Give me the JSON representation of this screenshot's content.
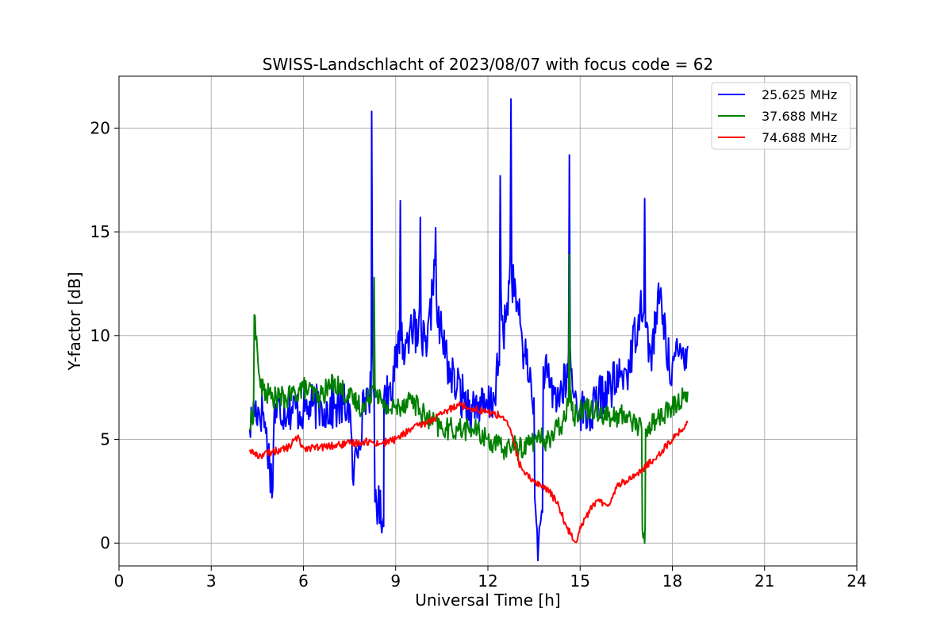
{
  "chart_data": {
    "type": "line",
    "title": "SWISS-Landschlacht of 2023/08/07 with focus code = 62",
    "xlabel": "Universal Time [h]",
    "ylabel": "Y-factor [dB]",
    "xlim": [
      0,
      24
    ],
    "ylim": [
      -1.1,
      22.5
    ],
    "xticks": [
      0,
      3,
      6,
      9,
      12,
      15,
      18,
      21,
      24
    ],
    "yticks": [
      0,
      5,
      10,
      15,
      20
    ],
    "grid": true,
    "legend_position": "top-right",
    "series": [
      {
        "name": "25.625 MHz",
        "color": "#0000ff",
        "x": [
          4.25,
          4.4,
          4.7,
          5.0,
          5.05,
          5.5,
          6.0,
          6.3,
          6.6,
          7.0,
          7.5,
          7.6,
          8.0,
          8.2,
          8.22,
          8.3,
          8.6,
          8.62,
          8.8,
          9.0,
          9.15,
          9.3,
          9.5,
          9.7,
          9.8,
          10.0,
          10.2,
          10.3,
          10.5,
          10.8,
          11.0,
          11.2,
          11.5,
          11.7,
          11.9,
          12.2,
          12.4,
          12.5,
          12.7,
          12.75,
          13.0,
          13.2,
          13.5,
          13.65,
          13.8,
          14.0,
          14.3,
          14.6,
          14.65,
          14.8,
          15.0,
          15.3,
          15.6,
          16.0,
          16.3,
          16.6,
          16.9,
          17.1,
          17.3,
          17.6,
          17.9,
          18.2,
          18.5
        ],
        "y": [
          5.5,
          6.5,
          6.3,
          2.6,
          6.4,
          6.5,
          6.4,
          6.6,
          6.5,
          6.5,
          6.7,
          3.1,
          7.0,
          7.5,
          20.8,
          7.0,
          1.2,
          7.0,
          7.5,
          8.5,
          16.5,
          9.0,
          11.0,
          9.5,
          15.7,
          9.0,
          12.0,
          15.2,
          10.0,
          8.0,
          7.5,
          7.0,
          6.5,
          6.8,
          6.3,
          7.0,
          17.7,
          10.0,
          12.5,
          21.4,
          11.0,
          9.0,
          7.0,
          0.0,
          8.5,
          7.5,
          7.0,
          8.0,
          18.7,
          7.0,
          6.5,
          6.0,
          7.0,
          7.5,
          8.0,
          8.5,
          11.0,
          16.6,
          9.0,
          12.0,
          8.5,
          9.0,
          9.5
        ]
      },
      {
        "name": "37.688 MHz",
        "color": "#008000",
        "x": [
          4.25,
          4.4,
          4.6,
          5.0,
          5.5,
          6.0,
          6.5,
          7.0,
          7.5,
          8.0,
          8.3,
          8.6,
          9.0,
          9.5,
          10.0,
          10.5,
          11.0,
          11.5,
          12.0,
          12.5,
          12.8,
          13.0,
          13.5,
          14.0,
          14.5,
          14.65,
          14.8,
          15.0,
          15.5,
          16.0,
          16.5,
          17.0,
          17.1,
          17.13,
          17.5,
          18.0,
          18.5
        ],
        "y": [
          5.5,
          11.0,
          7.5,
          7.0,
          7.0,
          7.5,
          7.0,
          7.8,
          7.0,
          6.5,
          12.8,
          6.5,
          6.5,
          7.0,
          6.0,
          5.5,
          5.5,
          5.5,
          5.0,
          4.5,
          4.8,
          4.5,
          5.0,
          5.0,
          6.0,
          13.9,
          6.0,
          6.5,
          6.5,
          6.0,
          6.2,
          5.5,
          0.0,
          5.5,
          6.0,
          6.5,
          7.3
        ]
      },
      {
        "name": "74.688 MHz",
        "color": "#ff0000",
        "x": [
          4.25,
          4.5,
          5.0,
          5.5,
          5.8,
          6.0,
          6.5,
          7.0,
          7.5,
          8.0,
          8.5,
          9.0,
          9.5,
          10.0,
          10.5,
          11.0,
          11.5,
          12.0,
          12.5,
          12.8,
          13.0,
          13.2,
          13.5,
          14.0,
          14.3,
          14.5,
          14.7,
          14.9,
          15.0,
          15.2,
          15.5,
          15.8,
          16.0,
          16.2,
          16.5,
          17.0,
          17.5,
          18.0,
          18.5
        ],
        "y": [
          4.5,
          4.2,
          4.4,
          4.6,
          5.1,
          4.6,
          4.6,
          4.7,
          4.8,
          4.9,
          4.8,
          5.0,
          5.5,
          5.8,
          6.2,
          6.7,
          6.5,
          6.3,
          6.1,
          5.2,
          3.9,
          3.3,
          3.0,
          2.5,
          1.8,
          1.0,
          0.4,
          0.1,
          0.8,
          1.3,
          2.0,
          1.9,
          2.0,
          2.8,
          3.0,
          3.5,
          4.2,
          5.0,
          5.8
        ]
      }
    ]
  }
}
